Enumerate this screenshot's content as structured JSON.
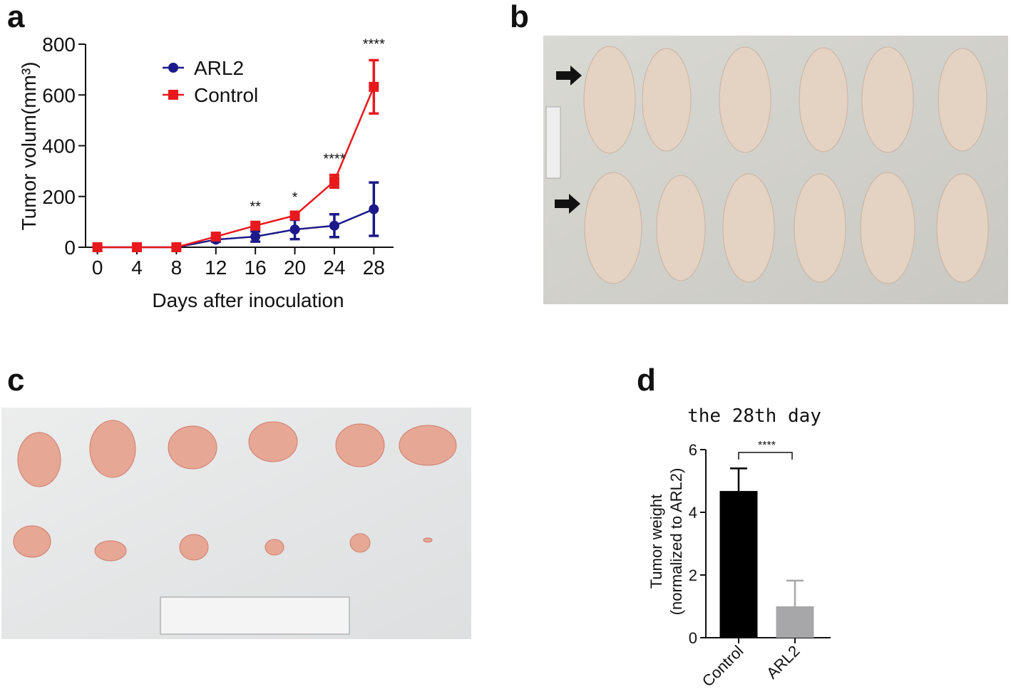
{
  "chart_data": [
    {
      "type": "line",
      "panel_label": "a",
      "xlabel": "Days after inoculation",
      "ylabel": "Tumor volum(mm³)",
      "x": [
        0,
        4,
        8,
        12,
        16,
        20,
        24,
        28
      ],
      "series": [
        {
          "name": "ARL2",
          "color": "#1c1a8a",
          "marker": "circle",
          "values": [
            0,
            0,
            0,
            30,
            42,
            70,
            85,
            150
          ],
          "errors": [
            0,
            0,
            0,
            8,
            20,
            38,
            45,
            105
          ]
        },
        {
          "name": "Control",
          "color": "#e8191c",
          "marker": "square",
          "values": [
            0,
            0,
            0,
            42,
            85,
            125,
            260,
            632
          ],
          "errors": [
            0,
            0,
            0,
            5,
            12,
            8,
            25,
            105
          ]
        }
      ],
      "annotations": [
        {
          "x": 16,
          "text": "**"
        },
        {
          "x": 20,
          "text": "*"
        },
        {
          "x": 24,
          "text": "****"
        },
        {
          "x": 28,
          "text": "****"
        }
      ],
      "xlim": [
        -1.2,
        30
      ],
      "xticks": [
        0,
        4,
        8,
        12,
        16,
        20,
        24,
        28
      ],
      "ylim": [
        0,
        800
      ],
      "yticks": [
        0,
        200,
        400,
        600,
        800
      ],
      "legend": "upper left"
    },
    {
      "type": "bar",
      "panel_label": "d",
      "title": "the 28th day",
      "ylabel": [
        "Tumor weight",
        "(normalized to ARL2)"
      ],
      "categories": [
        "Control",
        "ARL2"
      ],
      "values": [
        4.68,
        1.0
      ],
      "errors": [
        0.72,
        0.82
      ],
      "colors": [
        "#000000",
        "#a7a7aa"
      ],
      "significance": "****",
      "ylim": [
        0,
        6
      ],
      "yticks": [
        0,
        2,
        4,
        6
      ]
    }
  ],
  "photo_panels": [
    {
      "label": "b"
    },
    {
      "label": "c"
    }
  ]
}
